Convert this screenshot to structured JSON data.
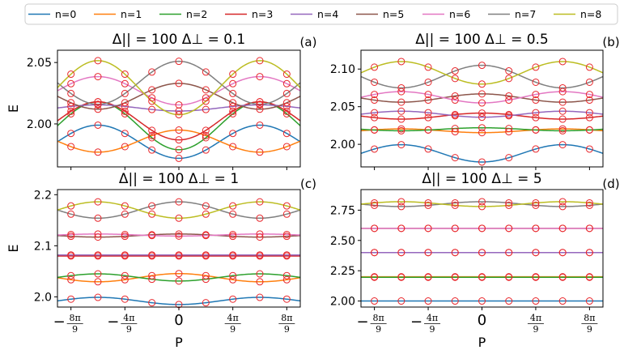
{
  "chart_data": {
    "type": "line",
    "legend": {
      "placement": "top",
      "entries": [
        {
          "label": "n=0",
          "color": "#1f77b4"
        },
        {
          "label": "n=1",
          "color": "#ff7f0e"
        },
        {
          "label": "n=2",
          "color": "#2ca02c"
        },
        {
          "label": "n=3",
          "color": "#d62728"
        },
        {
          "label": "n=4",
          "color": "#9467bd"
        },
        {
          "label": "n=5",
          "color": "#8c564b"
        },
        {
          "label": "n=6",
          "color": "#e377c2"
        },
        {
          "label": "n=7",
          "color": "#7f7f7f"
        },
        {
          "label": "n=8",
          "color": "#bcbd22"
        }
      ]
    },
    "marker_color": "#e8262b",
    "x_ticks": [
      {
        "sign": "−",
        "num": "8π",
        "den": "9",
        "value": -2.7925
      },
      {
        "sign": "−",
        "num": "4π",
        "den": "9",
        "value": -1.3963
      },
      {
        "sign": "",
        "num": "0",
        "den": "",
        "value": 0
      },
      {
        "sign": "",
        "num": "4π",
        "den": "9",
        "value": 1.3963
      },
      {
        "sign": "",
        "num": "8π",
        "den": "9",
        "value": 2.7925
      }
    ],
    "xlim": [
      -3.14159,
      3.14159
    ],
    "marker_x": [
      -2.7925,
      -2.0944,
      -1.3963,
      -0.6981,
      0,
      0.6981,
      1.3963,
      2.0944,
      2.7925
    ],
    "panels": [
      {
        "title": "Δ|| = 100 Δ⊥ = 0.1",
        "tag": "(a)",
        "ylabel": "E",
        "xlabel": "",
        "ylim": [
          1.965,
          2.06
        ],
        "yticks": [
          "2.00",
          "2.05"
        ],
        "ytick_values": [
          2.0,
          2.05
        ],
        "series": [
          {
            "name": "n=0",
            "mean": 1.9855,
            "amp": -0.0135
          },
          {
            "name": "n=1",
            "mean": 1.986,
            "amp": 0.009
          },
          {
            "name": "n=2",
            "mean": 1.9985,
            "amp": -0.0195
          },
          {
            "name": "n=3",
            "mean": 2.0025,
            "amp": -0.0155
          },
          {
            "name": "n=4",
            "mean": 2.013,
            "amp": -0.0025
          },
          {
            "name": "n=5",
            "mean": 2.0225,
            "amp": 0.0105
          },
          {
            "name": "n=6",
            "mean": 2.027,
            "amp": -0.0115
          },
          {
            "name": "n=7",
            "mean": 2.0335,
            "amp": 0.0175
          },
          {
            "name": "n=8",
            "mean": 2.0295,
            "amp": -0.022
          }
        ]
      },
      {
        "title": "Δ|| = 100 Δ⊥ = 0.5",
        "tag": "(b)",
        "ylabel": "",
        "xlabel": "",
        "ylim": [
          1.97,
          2.125
        ],
        "yticks": [
          "2.00",
          "2.05",
          "2.10"
        ],
        "ytick_values": [
          2.0,
          2.05,
          2.1
        ],
        "series": [
          {
            "name": "n=0",
            "mean": 1.988,
            "amp": -0.0115
          },
          {
            "name": "n=1",
            "mean": 2.018,
            "amp": -0.0025
          },
          {
            "name": "n=2",
            "mean": 2.02,
            "amp": 0.002
          },
          {
            "name": "n=3",
            "mean": 2.0375,
            "amp": 0.004
          },
          {
            "name": "n=4",
            "mean": 2.04,
            "amp": -0.004
          },
          {
            "name": "n=5",
            "mean": 2.0615,
            "amp": 0.0055
          },
          {
            "name": "n=6",
            "mean": 2.0625,
            "amp": -0.0075
          },
          {
            "name": "n=7",
            "mean": 2.09,
            "amp": 0.015
          },
          {
            "name": "n=8",
            "mean": 2.095,
            "amp": -0.015
          }
        ]
      },
      {
        "title": "Δ|| = 100 Δ⊥ = 1",
        "tag": "(c)",
        "ylabel": "E",
        "xlabel": "P",
        "ylim": [
          1.98,
          2.21
        ],
        "yticks": [
          "2.0",
          "2.1",
          "2.2"
        ],
        "ytick_values": [
          2.0,
          2.1,
          2.2
        ],
        "series": [
          {
            "name": "n=0",
            "mean": 1.992,
            "amp": -0.007
          },
          {
            "name": "n=1",
            "mean": 2.0375,
            "amp": 0.008
          },
          {
            "name": "n=2",
            "mean": 2.038,
            "amp": -0.007
          },
          {
            "name": "n=3",
            "mean": 2.08,
            "amp": 0.0
          },
          {
            "name": "n=4",
            "mean": 2.082,
            "amp": 0.0
          },
          {
            "name": "n=5",
            "mean": 2.12,
            "amp": 0.003
          },
          {
            "name": "n=6",
            "mean": 2.121,
            "amp": -0.002
          },
          {
            "name": "n=7",
            "mean": 2.17,
            "amp": 0.016
          },
          {
            "name": "n=8",
            "mean": 2.17,
            "amp": -0.016
          }
        ]
      },
      {
        "title": "Δ|| = 100 Δ⊥ = 5",
        "tag": "(d)",
        "ylabel": "",
        "xlabel": "P",
        "ylim": [
          1.95,
          2.92
        ],
        "yticks": [
          "2.00",
          "2.25",
          "2.50",
          "2.75"
        ],
        "ytick_values": [
          2.0,
          2.25,
          2.5,
          2.75
        ],
        "series": [
          {
            "name": "n=0",
            "mean": 2.0,
            "amp": 0.0
          },
          {
            "name": "n=1",
            "mean": 2.2,
            "amp": 0.0
          },
          {
            "name": "n=2",
            "mean": 2.196,
            "amp": 0.0
          },
          {
            "name": "n=3",
            "mean": 2.4,
            "amp": 0.0
          },
          {
            "name": "n=4",
            "mean": 2.4,
            "amp": 0.0
          },
          {
            "name": "n=5",
            "mean": 2.6,
            "amp": 0.0
          },
          {
            "name": "n=6",
            "mean": 2.6,
            "amp": 0.0
          },
          {
            "name": "n=7",
            "mean": 2.8,
            "amp": 0.02
          },
          {
            "name": "n=8",
            "mean": 2.8,
            "amp": -0.02
          }
        ]
      }
    ]
  }
}
